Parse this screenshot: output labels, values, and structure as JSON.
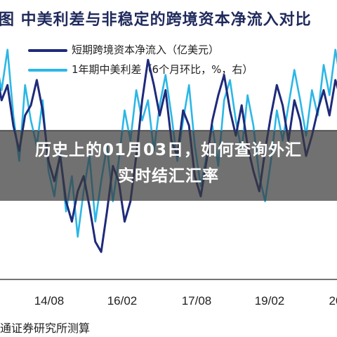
{
  "overlay": {
    "headline": "历史上的01月03日，如何查询外汇实时结汇汇率"
  },
  "source_note": "通证券研究所测算",
  "colors": {
    "title": "#1f2a5c",
    "short_flow": "#1f2a7a",
    "spread": "#2bb7e6",
    "overlay": "#3a3a3a"
  },
  "chart_data": {
    "type": "line",
    "title": "图  中美利差与非稳定的跨境资本净流入对比",
    "x_tick_labels": [
      "14/08",
      "16/02",
      "17/08",
      "19/02",
      "20"
    ],
    "grid": false,
    "legend_position": "top-left",
    "series": [
      {
        "name": "短期跨境资本净流入（亿美元）",
        "color": "#1f2a7a",
        "values": [
          1.2,
          0.6,
          0.9,
          0.1,
          -0.4,
          0.3,
          0.5,
          1.0,
          0.4,
          -0.6,
          -1.0,
          -0.5,
          -1.4,
          -1.8,
          -1.2,
          -0.9,
          -1.5,
          -2.2,
          -2.4,
          -1.6,
          -0.7,
          -1.0,
          -1.8,
          -1.4,
          -0.5,
          0.6,
          1.4,
          0.9,
          0.3,
          0.8,
          -0.2,
          -0.5,
          0.4,
          0.1,
          -0.9,
          -1.3,
          -0.6,
          0.2,
          0.7,
          1.1,
          0.4,
          -0.1,
          0.5,
          -0.3,
          -0.8,
          -1.2,
          -0.4,
          0.3,
          0.9,
          0.5,
          -0.2,
          0.6,
          0.2,
          -0.5,
          -0.1,
          0.4,
          0.8,
          0.3,
          1.0,
          0.6
        ]
      },
      {
        "name": "1年期中美利差（6个月环比，%，右）",
        "color": "#2bb7e6",
        "values": [
          1.4,
          0.8,
          1.6,
          0.3,
          -0.6,
          0.9,
          0.2,
          -0.3,
          0.6,
          -0.8,
          -1.3,
          -0.4,
          -1.6,
          -0.9,
          -2.1,
          -1.2,
          -0.5,
          -1.8,
          -1.0,
          -0.3,
          -1.4,
          -0.6,
          0.4,
          -0.2,
          0.8,
          0.2,
          0.6,
          -0.4,
          0.5,
          1.1,
          0.3,
          -0.6,
          0.2,
          0.9,
          -0.3,
          -1.1,
          -0.5,
          0.1,
          -0.7,
          0.6,
          1.0,
          0.2,
          -0.4,
          0.7,
          0.1,
          -0.9,
          -1.4,
          -0.6,
          0.4,
          -0.2,
          0.5,
          1.2,
          0.6,
          -0.1,
          0.8,
          0.3,
          1.3,
          0.7,
          1.6,
          0.9
        ]
      }
    ]
  }
}
